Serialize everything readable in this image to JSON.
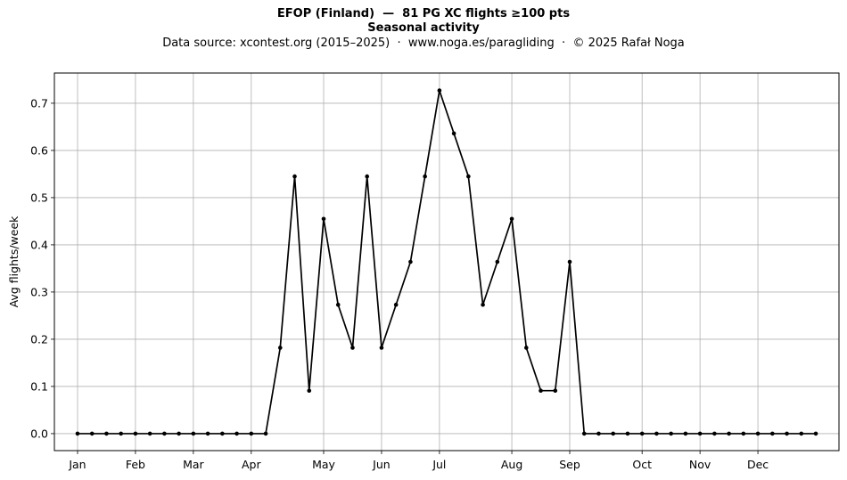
{
  "header": {
    "title_line1": "EFOP (Finland)  —  81 PG XC flights ≥100 pts",
    "title_line2": "Seasonal activity",
    "subtitle": "Data source: xcontest.org (2015–2025)  ·  www.noga.es/paragliding  ·  © 2025 Rafał Noga"
  },
  "chart_data": {
    "type": "line",
    "title": "EFOP (Finland)  —  81 PG XC flights ≥100 pts\nSeasonal activity",
    "subtitle": "Data source: xcontest.org (2015–2025)  ·  www.noga.es/paragliding  ·  © 2025 Rafał Noga",
    "xlabel": "",
    "ylabel": "Avg flights/week",
    "x_unit": "week of year",
    "x_ticks": [
      {
        "label": "Jan",
        "x": 1
      },
      {
        "label": "Feb",
        "x": 5
      },
      {
        "label": "Mar",
        "x": 9
      },
      {
        "label": "Apr",
        "x": 13
      },
      {
        "label": "May",
        "x": 18
      },
      {
        "label": "Jun",
        "x": 22
      },
      {
        "label": "Jul",
        "x": 26
      },
      {
        "label": "Aug",
        "x": 31
      },
      {
        "label": "Sep",
        "x": 35
      },
      {
        "label": "Oct",
        "x": 40
      },
      {
        "label": "Nov",
        "x": 44
      },
      {
        "label": "Dec",
        "x": 48
      }
    ],
    "y_ticks": [
      0.0,
      0.1,
      0.2,
      0.3,
      0.4,
      0.5,
      0.6,
      0.7
    ],
    "xlim": [
      -0.6,
      53.6
    ],
    "ylim": [
      -0.036,
      0.764
    ],
    "grid": true,
    "line_color": "#000000",
    "series": [
      {
        "x": [
          1,
          2,
          3,
          4,
          5,
          6,
          7,
          8,
          9,
          10,
          11,
          12,
          13,
          14,
          15,
          16,
          17,
          18,
          19,
          20,
          21,
          22,
          23,
          24,
          25,
          26,
          27,
          28,
          29,
          30,
          31,
          32,
          33,
          34,
          35,
          36,
          37,
          38,
          39,
          40,
          41,
          42,
          43,
          44,
          45,
          46,
          47,
          48,
          49,
          50,
          51,
          52
        ],
        "values": [
          0,
          0,
          0,
          0,
          0,
          0,
          0,
          0,
          0,
          0,
          0,
          0,
          0,
          0,
          0.182,
          0.545,
          0.091,
          0.455,
          0.273,
          0.182,
          0.545,
          0.182,
          0.273,
          0.364,
          0.545,
          0.727,
          0.636,
          0.545,
          0.273,
          0.364,
          0.455,
          0.182,
          0.091,
          0.091,
          0.364,
          0,
          0,
          0,
          0,
          0,
          0,
          0,
          0,
          0,
          0,
          0,
          0,
          0,
          0,
          0,
          0,
          0
        ]
      }
    ]
  }
}
